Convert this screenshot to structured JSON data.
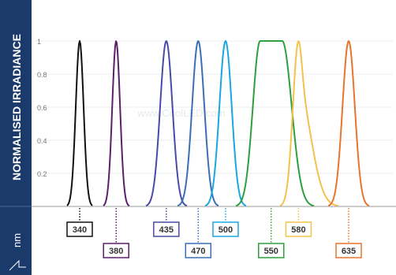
{
  "chart_data": {
    "type": "line",
    "title": "",
    "ylabel": "NORMALISED IRRADIANCE",
    "xlabel": "nm",
    "ylim": [
      0,
      1
    ],
    "y_ticks": [
      "1",
      "0.8",
      "0.6",
      "0.4",
      "0.2"
    ],
    "grid": true,
    "watermark": "www.CoolLED.com",
    "series": [
      {
        "name": "340",
        "peak": 340,
        "color": "#111111",
        "shape": "narrow"
      },
      {
        "name": "380",
        "peak": 380,
        "color": "#5b1f6b",
        "shape": "narrow"
      },
      {
        "name": "435",
        "peak": 435,
        "color": "#4a4aa6",
        "shape": "medium"
      },
      {
        "name": "470",
        "peak": 470,
        "color": "#3a6fb5",
        "shape": "medium"
      },
      {
        "name": "500",
        "peak": 500,
        "color": "#1aa6df",
        "shape": "medium"
      },
      {
        "name": "550",
        "peak": 550,
        "color": "#2e9e3e",
        "shape": "broad"
      },
      {
        "name": "580",
        "peak": 580,
        "color": "#f2c24a",
        "shape": "shoulder"
      },
      {
        "name": "635",
        "peak": 635,
        "color": "#e8742e",
        "shape": "medium"
      }
    ]
  }
}
